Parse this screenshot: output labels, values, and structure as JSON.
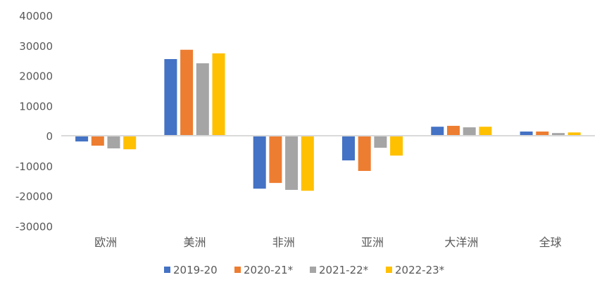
{
  "chart_data": {
    "type": "bar",
    "title": "",
    "xlabel": "",
    "ylabel": "",
    "categories": [
      "欧洲",
      "美洲",
      "非洲",
      "亚洲",
      "大洋洲",
      "全球"
    ],
    "ylim": [
      -30000,
      40000
    ],
    "yticks": [
      "40000",
      "30000",
      "20000",
      "10000",
      "0",
      "-10000",
      "-20000",
      "-30000"
    ],
    "grid": false,
    "legend_position": "bottom",
    "series": [
      {
        "name": "2019-20",
        "color": "#4472C4",
        "values": [
          -1900,
          25500,
          -17600,
          -8200,
          3000,
          1400
        ]
      },
      {
        "name": "2020-21*",
        "color": "#ED7D31",
        "values": [
          -3300,
          28600,
          -15700,
          -11700,
          3300,
          1400
        ]
      },
      {
        "name": "2021-22*",
        "color": "#A5A5A5",
        "values": [
          -4200,
          24100,
          -18000,
          -4000,
          2800,
          900
        ]
      },
      {
        "name": "2022-23*",
        "color": "#FFC000",
        "values": [
          -4500,
          27400,
          -18300,
          -6600,
          3000,
          1100
        ]
      }
    ]
  }
}
